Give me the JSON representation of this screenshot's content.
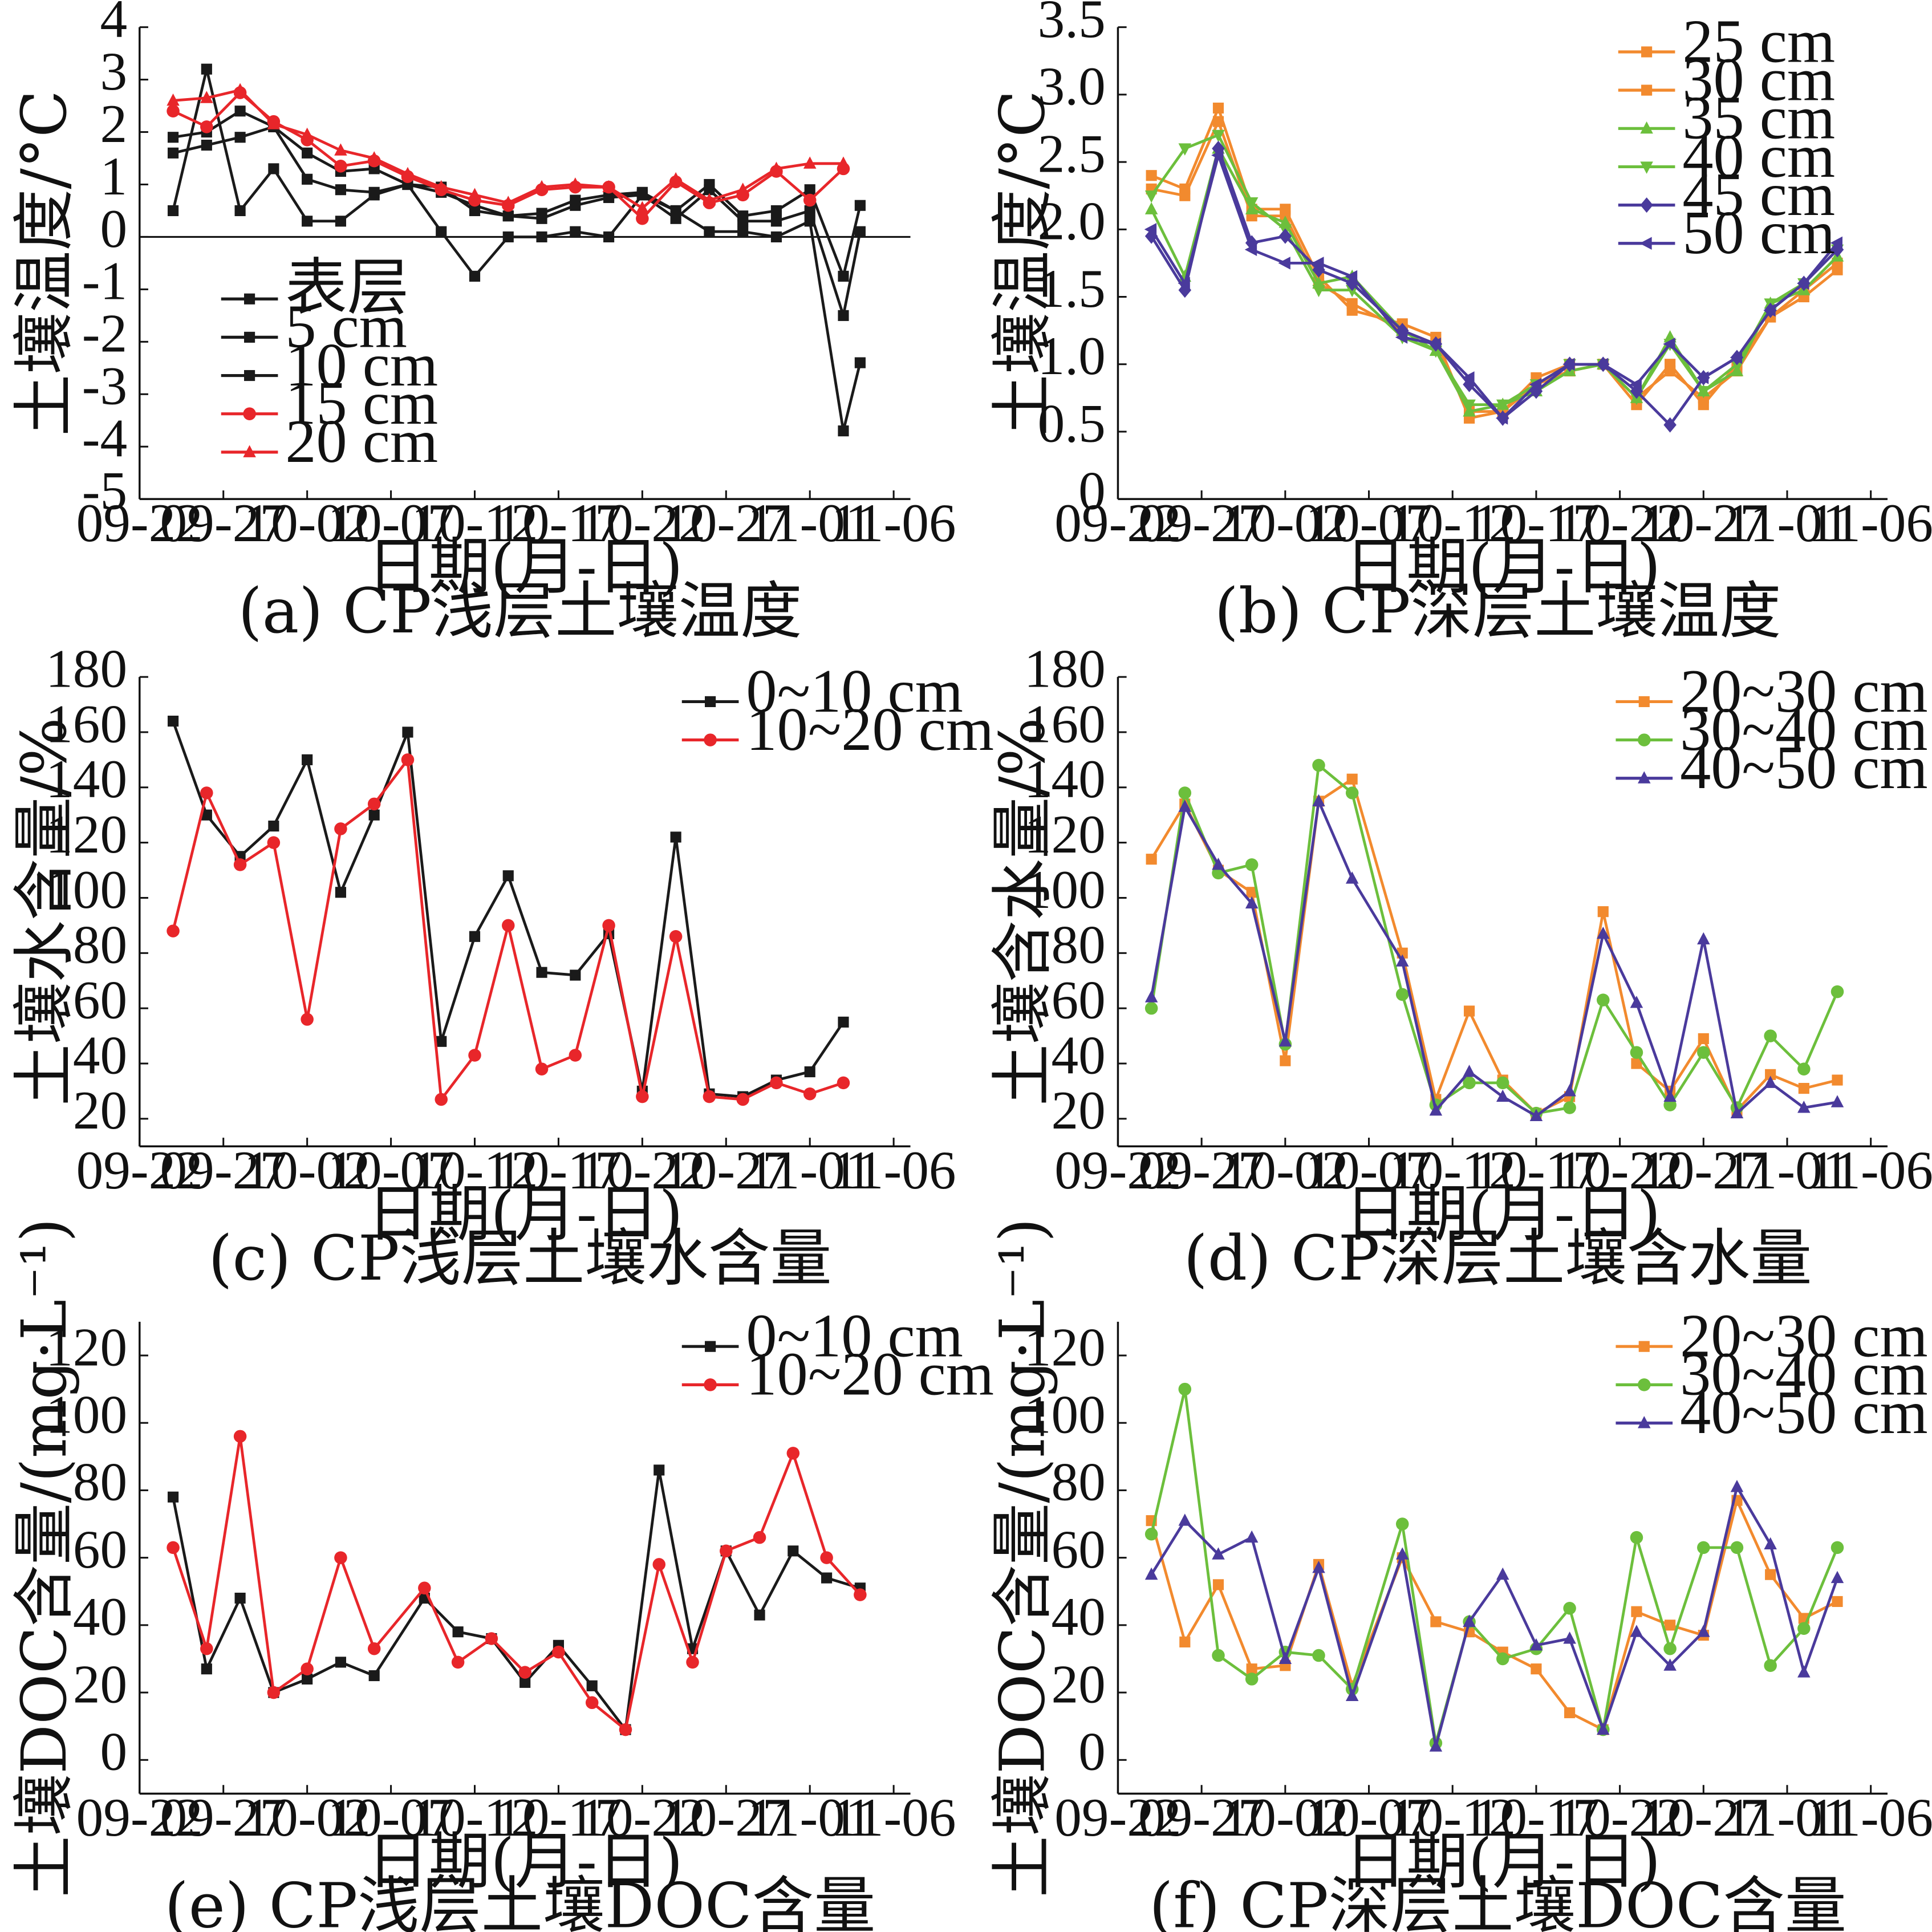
{
  "colors": {
    "black": "#1a1a1a",
    "red": "#e8262a",
    "orange": "#f28a2e",
    "green": "#6cbf3c",
    "purple": "#4a3a9c"
  },
  "chart_data": [
    {
      "id": "a",
      "type": "line",
      "caption": "(a) CP浅层土壤温度",
      "xlabel": "日期(月-日)",
      "ylabel": "土壤温度/°C",
      "x_ticks": [
        "09-22",
        "09-27",
        "10-02",
        "10-07",
        "10-12",
        "10-17",
        "10-22",
        "10-27",
        "11-01",
        "11-06"
      ],
      "x_range_days": [
        0,
        46
      ],
      "x_days": [
        2,
        4,
        6,
        8,
        10,
        12,
        14,
        16,
        18,
        20,
        22,
        24,
        26,
        28,
        30,
        32,
        34,
        36,
        38,
        40,
        42,
        43,
        44
      ],
      "ylim": [
        -5,
        4
      ],
      "y_ticks": [
        -5,
        -4,
        -3,
        -2,
        -1,
        0,
        1,
        2,
        3,
        4
      ],
      "zero_line": true,
      "legend": "upper-left",
      "series": [
        {
          "name": "表层",
          "color": "black",
          "marker": "square",
          "values": [
            0.5,
            3.2,
            0.5,
            1.3,
            0.3,
            0.3,
            0.8,
            1.0,
            0.1,
            -0.75,
            0.0,
            0.0,
            0.1,
            0.0,
            0.8,
            0.5,
            0.1,
            0.1,
            0.0,
            0.3,
            -3.7,
            -2.4,
            null
          ]
        },
        {
          "name": "5 cm",
          "color": "black",
          "marker": "square",
          "values": [
            1.6,
            1.75,
            1.9,
            2.1,
            1.1,
            0.9,
            0.85,
            1.0,
            0.95,
            0.5,
            0.4,
            0.35,
            0.6,
            0.75,
            0.8,
            0.35,
            0.9,
            0.3,
            0.3,
            0.5,
            -1.5,
            0.1,
            null
          ]
        },
        {
          "name": "10 cm",
          "color": "black",
          "marker": "square",
          "values": [
            1.9,
            2.0,
            2.4,
            2.1,
            1.6,
            1.25,
            1.3,
            1.0,
            0.85,
            0.6,
            0.4,
            0.45,
            0.7,
            0.8,
            0.85,
            0.5,
            1.0,
            0.4,
            0.5,
            0.9,
            -0.75,
            0.6,
            null
          ]
        },
        {
          "name": "15 cm",
          "color": "red",
          "marker": "circle",
          "values": [
            2.4,
            2.1,
            2.75,
            2.2,
            1.85,
            1.35,
            1.45,
            1.15,
            0.9,
            0.7,
            0.6,
            0.9,
            0.95,
            0.95,
            0.35,
            1.05,
            0.65,
            0.8,
            1.25,
            0.7,
            1.3,
            null,
            null
          ]
        },
        {
          "name": "20 cm",
          "color": "red",
          "marker": "triangle",
          "values": [
            2.6,
            2.65,
            2.8,
            2.15,
            1.95,
            1.65,
            1.5,
            1.2,
            0.95,
            0.8,
            0.65,
            0.95,
            1.0,
            0.95,
            0.55,
            1.1,
            0.7,
            0.9,
            1.3,
            1.4,
            1.4,
            null,
            null
          ]
        }
      ]
    },
    {
      "id": "b",
      "type": "line",
      "caption": "(b) CP深层土壤温度",
      "xlabel": "日期(月-日)",
      "ylabel": "土壤温度/°C",
      "x_ticks": [
        "09-22",
        "09-27",
        "10-02",
        "10-07",
        "10-12",
        "10-17",
        "10-22",
        "10-27",
        "11-01",
        "11-06"
      ],
      "x_range_days": [
        0,
        46
      ],
      "x_days": [
        2,
        4,
        6,
        8,
        10,
        12,
        14,
        17,
        19,
        21,
        23,
        25,
        27,
        29,
        31,
        33,
        35,
        37,
        39,
        41,
        43
      ],
      "ylim": [
        0,
        3.5
      ],
      "y_ticks": [
        "0",
        "0.5",
        "1.0",
        "1.5",
        "2.0",
        "2.5",
        "3.0",
        "3.5"
      ],
      "legend": "upper-right",
      "series": [
        {
          "name": "25 cm",
          "color": "orange",
          "marker": "square",
          "values": [
            2.4,
            2.3,
            2.9,
            2.15,
            2.15,
            1.65,
            1.4,
            1.3,
            1.2,
            0.6,
            0.65,
            0.9,
            1.0,
            1.0,
            0.7,
            1.0,
            0.7,
            1.0,
            1.35,
            1.55,
            1.75
          ]
        },
        {
          "name": "30 cm",
          "color": "orange",
          "marker": "square",
          "values": [
            2.3,
            2.25,
            2.8,
            2.1,
            2.1,
            1.6,
            1.45,
            1.25,
            1.15,
            0.65,
            0.65,
            0.85,
            0.95,
            1.0,
            0.75,
            0.95,
            0.75,
            0.95,
            1.35,
            1.5,
            1.7
          ]
        },
        {
          "name": "35 cm",
          "color": "green",
          "marker": "triangle",
          "values": [
            2.15,
            1.65,
            2.6,
            2.15,
            2.05,
            1.6,
            1.65,
            1.25,
            1.1,
            0.65,
            0.7,
            0.8,
            0.95,
            1.0,
            0.75,
            1.2,
            0.8,
            0.95,
            1.45,
            1.55,
            1.8
          ]
        },
        {
          "name": "40 cm",
          "color": "green",
          "marker": "triangle-down",
          "values": [
            2.25,
            2.6,
            2.7,
            2.2,
            2.0,
            1.55,
            1.55,
            1.2,
            1.1,
            0.7,
            0.7,
            0.85,
            1.0,
            1.0,
            0.75,
            1.15,
            0.8,
            1.0,
            1.45,
            1.6,
            1.85
          ]
        },
        {
          "name": "45 cm",
          "color": "purple",
          "marker": "diamond",
          "values": [
            1.95,
            1.55,
            2.6,
            1.9,
            1.95,
            1.7,
            1.6,
            1.25,
            1.15,
            0.85,
            0.6,
            0.8,
            1.0,
            1.0,
            0.8,
            0.55,
            0.9,
            1.05,
            1.4,
            1.6,
            1.85
          ]
        },
        {
          "name": "50 cm",
          "color": "purple",
          "marker": "triangle-left",
          "values": [
            2.0,
            1.6,
            2.55,
            1.85,
            1.75,
            1.75,
            1.65,
            1.2,
            1.15,
            0.9,
            0.6,
            0.85,
            1.0,
            1.0,
            0.85,
            1.15,
            0.9,
            1.05,
            1.4,
            1.6,
            1.9
          ]
        }
      ]
    },
    {
      "id": "c",
      "type": "line",
      "caption": "(c) CP浅层土壤水含量",
      "xlabel": "日期(月-日)",
      "ylabel": "土壤水含量/%",
      "x_ticks": [
        "09-22",
        "09-27",
        "10-02",
        "10-07",
        "10-12",
        "10-17",
        "10-22",
        "10-27",
        "11-01",
        "11-06"
      ],
      "x_range_days": [
        0,
        46
      ],
      "x_days": [
        2,
        4,
        6,
        8,
        10,
        12,
        14,
        16,
        18,
        20,
        22,
        24,
        26,
        28,
        30,
        32,
        34,
        36,
        38,
        40,
        42,
        44
      ],
      "ylim": [
        10,
        180
      ],
      "y_ticks": [
        20,
        40,
        60,
        80,
        100,
        120,
        140,
        160,
        180
      ],
      "legend": "upper-right",
      "series": [
        {
          "name": "0~10 cm",
          "color": "black",
          "marker": "square",
          "values": [
            164,
            130,
            115,
            126,
            150,
            102,
            130,
            160,
            48,
            86,
            108,
            73,
            72,
            87,
            30,
            122,
            29,
            28,
            34,
            37,
            55,
            null
          ]
        },
        {
          "name": "10~20 cm",
          "color": "red",
          "marker": "circle",
          "values": [
            88,
            138,
            112,
            120,
            56,
            125,
            134,
            150,
            27,
            43,
            90,
            38,
            43,
            90,
            28,
            86,
            28,
            27,
            33,
            29,
            33,
            null
          ]
        }
      ]
    },
    {
      "id": "d",
      "type": "line",
      "caption": "(d) CP深层土壤含水量",
      "xlabel": "日期(月-日)",
      "ylabel": "土壤含水量/%",
      "x_ticks": [
        "09-22",
        "09-27",
        "10-02",
        "10-07",
        "10-12",
        "10-17",
        "10-22",
        "10-27",
        "11-01",
        "11-06"
      ],
      "x_range_days": [
        0,
        46
      ],
      "x_days": [
        2,
        4,
        6,
        8,
        10,
        12,
        14,
        17,
        19,
        21,
        23,
        25,
        27,
        29,
        31,
        33,
        35,
        37,
        39,
        41,
        43
      ],
      "ylim": [
        10,
        180
      ],
      "y_ticks": [
        20,
        40,
        60,
        80,
        100,
        120,
        140,
        160,
        180
      ],
      "legend": "upper-right",
      "series": [
        {
          "name": "20~30 cm",
          "color": "orange",
          "marker": "square",
          "values": [
            114,
            134,
            110,
            102,
            41,
            135,
            143,
            80,
            27,
            59,
            34,
            22,
            28,
            95,
            40,
            30,
            49,
            23,
            36,
            31,
            34
          ]
        },
        {
          "name": "30~40 cm",
          "color": "green",
          "marker": "circle",
          "values": [
            60,
            138,
            109,
            112,
            47,
            148,
            138,
            65,
            25,
            33,
            33,
            22,
            24,
            63,
            44,
            25,
            44,
            24,
            50,
            38,
            66
          ]
        },
        {
          "name": "40~50 cm",
          "color": "purple",
          "marker": "triangle",
          "values": [
            64,
            133,
            112,
            98,
            48,
            135,
            107,
            77,
            23,
            37,
            28,
            21,
            30,
            87,
            62,
            28,
            85,
            22,
            33,
            24,
            26
          ]
        }
      ]
    },
    {
      "id": "e",
      "type": "line",
      "caption": "(e) CP浅层土壤DOC含量",
      "xlabel": "日期(月-日)",
      "ylabel": "土壤DOC含量/(mg·L⁻¹)",
      "x_ticks": [
        "09-22",
        "09-27",
        "10-02",
        "10-07",
        "10-12",
        "10-17",
        "10-22",
        "10-27",
        "11-01",
        "11-06"
      ],
      "x_range_days": [
        0,
        46
      ],
      "x_days": [
        2,
        4,
        6,
        8,
        10,
        12,
        14,
        17,
        19,
        21,
        23,
        25,
        27,
        29,
        31,
        33,
        35,
        37,
        39,
        41,
        43
      ],
      "ylim": [
        -10,
        130
      ],
      "y_ticks": [
        0,
        20,
        40,
        60,
        80,
        100,
        120
      ],
      "legend": "upper-right",
      "series": [
        {
          "name": "0~10 cm",
          "color": "black",
          "marker": "square",
          "values": [
            78,
            27,
            48,
            20,
            24,
            29,
            25,
            48,
            38,
            36,
            23,
            34,
            22,
            9,
            86,
            33,
            62,
            43,
            62,
            54,
            51
          ]
        },
        {
          "name": "10~20 cm",
          "color": "red",
          "marker": "circle",
          "values": [
            63,
            33,
            96,
            20,
            27,
            60,
            33,
            51,
            29,
            36,
            26,
            32,
            17,
            9,
            58,
            29,
            62,
            66,
            91,
            60,
            49
          ]
        }
      ]
    },
    {
      "id": "f",
      "type": "line",
      "caption": "(f) CP深层土壤DOC含量",
      "xlabel": "日期(月-日)",
      "ylabel": "土壤DOC含量/(mg·L⁻¹)",
      "x_ticks": [
        "09-22",
        "09-27",
        "10-02",
        "10-07",
        "10-12",
        "10-17",
        "10-22",
        "10-27",
        "11-01",
        "11-06"
      ],
      "x_range_days": [
        0,
        46
      ],
      "x_days": [
        2,
        4,
        6,
        8,
        10,
        12,
        14,
        17,
        19,
        21,
        23,
        25,
        27,
        29,
        31,
        33,
        35,
        37,
        39,
        41,
        43
      ],
      "ylim": [
        -10,
        130
      ],
      "y_ticks": [
        0,
        20,
        40,
        60,
        80,
        100,
        120
      ],
      "legend": "upper-right",
      "series": [
        {
          "name": "20~30 cm",
          "color": "orange",
          "marker": "square",
          "values": [
            71,
            35,
            52,
            27,
            28,
            58,
            22,
            60,
            41,
            38,
            32,
            27,
            14,
            9,
            44,
            40,
            37,
            77,
            55,
            42,
            47
          ]
        },
        {
          "name": "30~40 cm",
          "color": "green",
          "marker": "circle",
          "values": [
            67,
            110,
            31,
            24,
            32,
            31,
            21,
            70,
            5,
            41,
            30,
            33,
            45,
            9,
            66,
            33,
            63,
            63,
            28,
            39,
            63
          ]
        },
        {
          "name": "40~50 cm",
          "color": "purple",
          "marker": "triangle",
          "values": [
            55,
            71,
            61,
            66,
            30,
            57,
            19,
            61,
            4,
            41,
            55,
            34,
            36,
            9,
            38,
            28,
            38,
            81,
            64,
            26,
            54
          ]
        }
      ]
    }
  ]
}
